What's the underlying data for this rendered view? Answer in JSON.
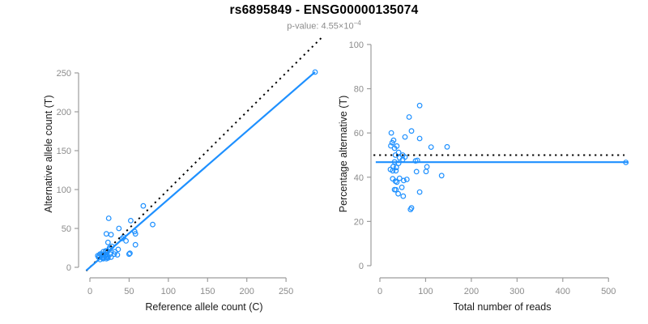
{
  "header": {
    "title": "rs6895849 - ENSG00000135074",
    "pvalue_text": "p-value: 4.55×10",
    "pvalue_exponent": "−4"
  },
  "colors": {
    "point_blue": "#1e90ff",
    "fit_line_blue": "#1e90ff",
    "identity_line_black": "#000000",
    "axis_line_gray": "#9c9c9c",
    "tick_label_gray": "#8c8c8c",
    "axis_title_dark": "#1a1a1a",
    "subtitle_gray": "#8c8c8c",
    "background": "#ffffff"
  },
  "chart_data": [
    {
      "id": "allele-counts-scatter",
      "type": "scatter",
      "xlabel": "Reference allele count (C)",
      "ylabel": "Alternative allele count (T)",
      "xticks": [
        0,
        50,
        100,
        150,
        200,
        250
      ],
      "yticks": [
        0,
        50,
        100,
        150,
        200,
        250
      ],
      "xlim": [
        0,
        290
      ],
      "ylim": [
        0,
        295
      ],
      "grid": false,
      "legend": "none",
      "points": [
        [
          24,
          63
        ],
        [
          21,
          43
        ],
        [
          27,
          42
        ],
        [
          10,
          15
        ],
        [
          23,
          32
        ],
        [
          13,
          17
        ],
        [
          37,
          50
        ],
        [
          12,
          15
        ],
        [
          11,
          13
        ],
        [
          17,
          20
        ],
        [
          52,
          60
        ],
        [
          68,
          79
        ],
        [
          15,
          17
        ],
        [
          20,
          21
        ],
        [
          25,
          25
        ],
        [
          17,
          17
        ],
        [
          22,
          21
        ],
        [
          28,
          27
        ],
        [
          26,
          24
        ],
        [
          41,
          37
        ],
        [
          43,
          39
        ],
        [
          17,
          15
        ],
        [
          22,
          19
        ],
        [
          16,
          13
        ],
        [
          20,
          16
        ],
        [
          13,
          10
        ],
        [
          16,
          12
        ],
        [
          20,
          15
        ],
        [
          46,
          34
        ],
        [
          57,
          46
        ],
        [
          58,
          43
        ],
        [
          80,
          55
        ],
        [
          17,
          11
        ],
        [
          26,
          17
        ],
        [
          21,
          13
        ],
        [
          23,
          14
        ],
        [
          32,
          20
        ],
        [
          36,
          23
        ],
        [
          31,
          17
        ],
        [
          21,
          11
        ],
        [
          23,
          12
        ],
        [
          58,
          29
        ],
        [
          27,
          13
        ],
        [
          35,
          16
        ],
        [
          51,
          18
        ],
        [
          50,
          17
        ],
        [
          287,
          251
        ]
      ],
      "lines": [
        {
          "name": "identity-line",
          "style": "dotted",
          "color": "#000000",
          "slope": 1,
          "intercept": 0,
          "x_range": [
            -4.6,
            295
          ]
        },
        {
          "name": "fit-line",
          "style": "solid",
          "color": "#1e90ff",
          "slope": 0.875,
          "intercept": 0,
          "x_range": [
            -4.6,
            287
          ]
        }
      ]
    },
    {
      "id": "percentage-vs-reads-scatter",
      "type": "scatter",
      "xlabel": "Total number of reads",
      "ylabel": "Percentage alternative (T)",
      "xticks": [
        0,
        100,
        200,
        300,
        400,
        500
      ],
      "yticks": [
        0,
        20,
        40,
        60,
        80,
        100
      ],
      "xlim": [
        0,
        545
      ],
      "ylim": [
        0,
        100
      ],
      "grid": false,
      "legend": "none",
      "points": [
        [
          87,
          72.4
        ],
        [
          64,
          67.2
        ],
        [
          69,
          60.9
        ],
        [
          25,
          60.0
        ],
        [
          55,
          58.2
        ],
        [
          30,
          56.7
        ],
        [
          87,
          57.5
        ],
        [
          27,
          55.6
        ],
        [
          24,
          54.2
        ],
        [
          37,
          54.1
        ],
        [
          112,
          53.6
        ],
        [
          147,
          53.7
        ],
        [
          32,
          53.1
        ],
        [
          41,
          51.2
        ],
        [
          50,
          50.0
        ],
        [
          34,
          50.0
        ],
        [
          43,
          48.8
        ],
        [
          55,
          49.1
        ],
        [
          50,
          48.0
        ],
        [
          78,
          47.4
        ],
        [
          82,
          47.6
        ],
        [
          32,
          46.9
        ],
        [
          41,
          46.3
        ],
        [
          29,
          44.8
        ],
        [
          36,
          44.4
        ],
        [
          23,
          43.5
        ],
        [
          28,
          42.9
        ],
        [
          35,
          42.9
        ],
        [
          80,
          42.5
        ],
        [
          103,
          44.7
        ],
        [
          101,
          42.6
        ],
        [
          135,
          40.7
        ],
        [
          28,
          39.3
        ],
        [
          43,
          39.5
        ],
        [
          34,
          38.2
        ],
        [
          37,
          37.8
        ],
        [
          52,
          38.5
        ],
        [
          59,
          39.0
        ],
        [
          48,
          35.4
        ],
        [
          32,
          34.4
        ],
        [
          35,
          34.3
        ],
        [
          87,
          33.3
        ],
        [
          40,
          32.5
        ],
        [
          51,
          31.4
        ],
        [
          69,
          26.1
        ],
        [
          67,
          25.4
        ],
        [
          538,
          46.7
        ]
      ],
      "lines": [
        {
          "name": "fifty-percent-line",
          "style": "dotted",
          "color": "#000000",
          "slope": 0,
          "intercept": 50,
          "x_range": [
            -14,
            535
          ]
        },
        {
          "name": "fit-line",
          "style": "solid",
          "color": "#1e90ff",
          "slope": 0,
          "intercept": 46.8,
          "x_range": [
            -9,
            542
          ]
        }
      ]
    }
  ]
}
